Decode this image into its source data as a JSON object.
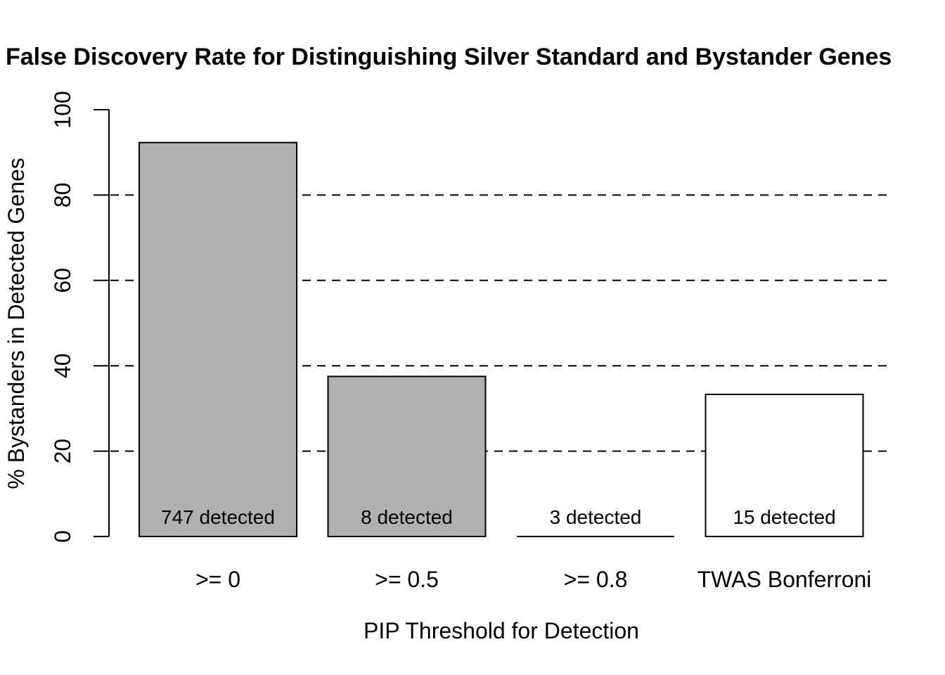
{
  "page": {
    "background": "#ffffff",
    "text_color": "#000000"
  },
  "chart_data": {
    "type": "bar",
    "title": "False Discovery Rate for Distinguishing Silver Standard and Bystander Genes",
    "xlabel": "PIP Threshold for Detection",
    "ylabel": "% Bystanders in Detected Genes",
    "categories": [
      ">= 0",
      ">= 0.5",
      ">= 0.8",
      "TWAS Bonferroni"
    ],
    "values": [
      92.3,
      37.5,
      0,
      33.3
    ],
    "bar_labels": [
      "747 detected",
      "8 detected",
      "3 detected",
      "15 detected"
    ],
    "detected_counts": [
      747,
      8,
      3,
      15
    ],
    "bar_fills": [
      "#b0b0b0",
      "#b0b0b0",
      "#b0b0b0",
      "#ffffff"
    ],
    "bar_border_color": "#000000",
    "ylim": [
      0,
      100
    ],
    "yticks": [
      0,
      20,
      40,
      60,
      80,
      100
    ],
    "gridlines": {
      "values": [
        20,
        40,
        60,
        80
      ],
      "style": "dashed",
      "color": "#000000"
    },
    "grid": "horizontal-dashed",
    "legend_position": "none"
  }
}
